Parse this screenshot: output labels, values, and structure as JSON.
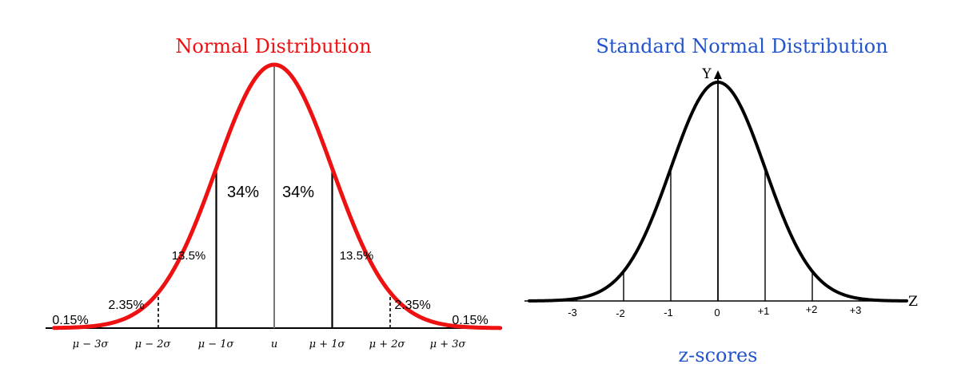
{
  "left_panel": {
    "title": "Normal Distribution",
    "title_color": "#ee1111",
    "curve_color": "#ee1111",
    "regions": [
      {
        "label": "0.15%",
        "value": 0.15
      },
      {
        "label": "2.35%",
        "value": 2.35
      },
      {
        "label": "13.5%",
        "value": 13.5
      },
      {
        "label": "34%",
        "value": 34
      },
      {
        "label": "34%",
        "value": 34
      },
      {
        "label": "13.5%",
        "value": 13.5
      },
      {
        "label": "2.35%",
        "value": 2.35
      },
      {
        "label": "0.15%",
        "value": 0.15
      }
    ],
    "ticks": [
      "μ − 3σ",
      "μ − 2σ",
      "μ − 1σ",
      "u",
      "μ + 1σ",
      "μ + 2σ",
      "μ + 3σ"
    ]
  },
  "right_panel": {
    "title": "Standard Normal Distribution",
    "title_color": "#2255cc",
    "curve_color": "#000000",
    "y_axis_label": "Y",
    "x_axis_label": "Z",
    "ticks": [
      "-3",
      "-2",
      "-1",
      "0",
      "+1",
      "+2",
      "+3"
    ],
    "caption": "z-scores",
    "caption_color": "#2255cc"
  }
}
